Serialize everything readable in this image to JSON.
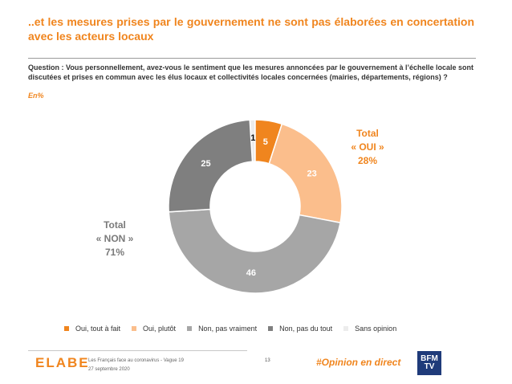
{
  "title": "..et les mesures prises par le gouvernement ne sont pas élaborées en concertation avec les acteurs locaux",
  "question": "Question : Vous personnellement, avez-vous le sentiment que les mesures annoncées par le gouvernement à l’échelle locale sont discutées et prises en commun avec les élus locaux et collectivités locales concernées (mairies, départements, régions) ?",
  "unit": "En%",
  "totals": {
    "yes": {
      "line1": "Total",
      "line2": "« OUI »",
      "value": "28%"
    },
    "no": {
      "line1": "Total",
      "line2": "« NON »",
      "value": "71%"
    }
  },
  "chart_data": {
    "type": "pie",
    "variant": "donut",
    "categories": [
      "Oui, tout à fait",
      "Oui, plutôt",
      "Non, pas vraiment",
      "Non, pas du tout",
      "Sans opinion"
    ],
    "values": [
      5,
      23,
      46,
      25,
      1
    ],
    "colors": [
      "#f0851e",
      "#fbbe8c",
      "#a6a6a6",
      "#7f7f7f",
      "#ececec"
    ],
    "label_colors": [
      "#ffffff",
      "#ffffff",
      "#ffffff",
      "#ffffff",
      "#333333"
    ],
    "legend_position": "bottom"
  },
  "footer": {
    "logo": "ELABE",
    "line1": "Les Français face au coronavirus - Vague 19",
    "line2": "27 septembre 2020",
    "page": "13",
    "hashtag": "#Opinion en direct",
    "partner": "BFM TV"
  }
}
